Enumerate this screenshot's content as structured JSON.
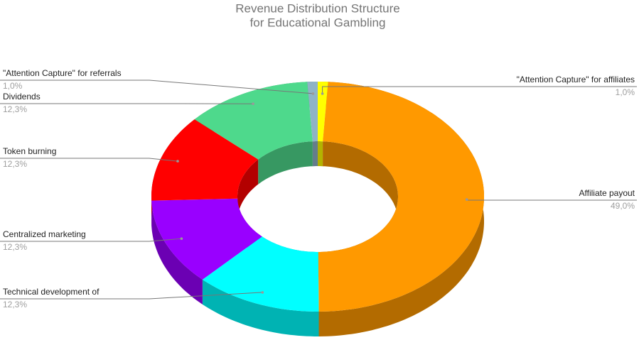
{
  "chart_data": {
    "type": "donut3d",
    "title": [
      "Revenue Distribution Structure",
      "for Educational Gambling"
    ],
    "categories": [
      "\"Attention Capture\" for affiliates",
      "Affiliate payout",
      "Technical development of",
      "Centralized marketing",
      "Token burning",
      "Dividends",
      "\"Attention Capture\" for referrals"
    ],
    "values": [
      1.0,
      49.0,
      12.3,
      12.3,
      12.3,
      12.3,
      1.0
    ],
    "value_labels": [
      "1,0%",
      "49,0%",
      "12,3%",
      "12,3%",
      "12,3%",
      "12,3%",
      "1,0%"
    ],
    "colors": [
      "#ffff00",
      "#ff9900",
      "#00ffff",
      "#9900ff",
      "#ff0000",
      "#4ed98c",
      "#8fb3c6"
    ]
  }
}
